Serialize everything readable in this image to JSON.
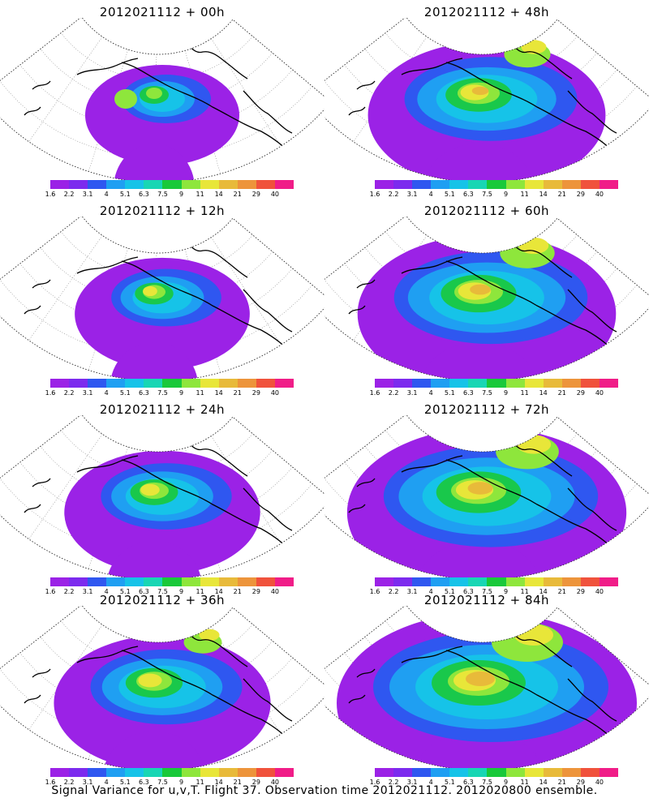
{
  "panels": [
    {
      "title": "2012021112 + 00h",
      "lead_hours": 0
    },
    {
      "title": "2012021112 + 48h",
      "lead_hours": 48
    },
    {
      "title": "2012021112 + 12h",
      "lead_hours": 12
    },
    {
      "title": "2012021112 + 60h",
      "lead_hours": 60
    },
    {
      "title": "2012021112 + 24h",
      "lead_hours": 24
    },
    {
      "title": "2012021112 + 72h",
      "lead_hours": 72
    },
    {
      "title": "2012021112 + 36h",
      "lead_hours": 36
    },
    {
      "title": "2012021112 + 84h",
      "lead_hours": 84
    }
  ],
  "colorbar": {
    "labels": [
      "1.6",
      "2.2",
      "3.1",
      "4",
      "5.1",
      "6.3",
      "7.5",
      "9",
      "11",
      "14",
      "21",
      "29",
      "40"
    ],
    "colors": [
      "#9b22e6",
      "#7c2bee",
      "#2f57f0",
      "#1f9ff2",
      "#16c3e8",
      "#18d6b4",
      "#19c93a",
      "#8ee63c",
      "#e8e639",
      "#e8ba3a",
      "#ed943b",
      "#f0523c",
      "#f01d88"
    ]
  },
  "caption": "Signal Variance for u,v,T. Flight 37. Observation time 2012021112. 2012020800 ensemble."
}
